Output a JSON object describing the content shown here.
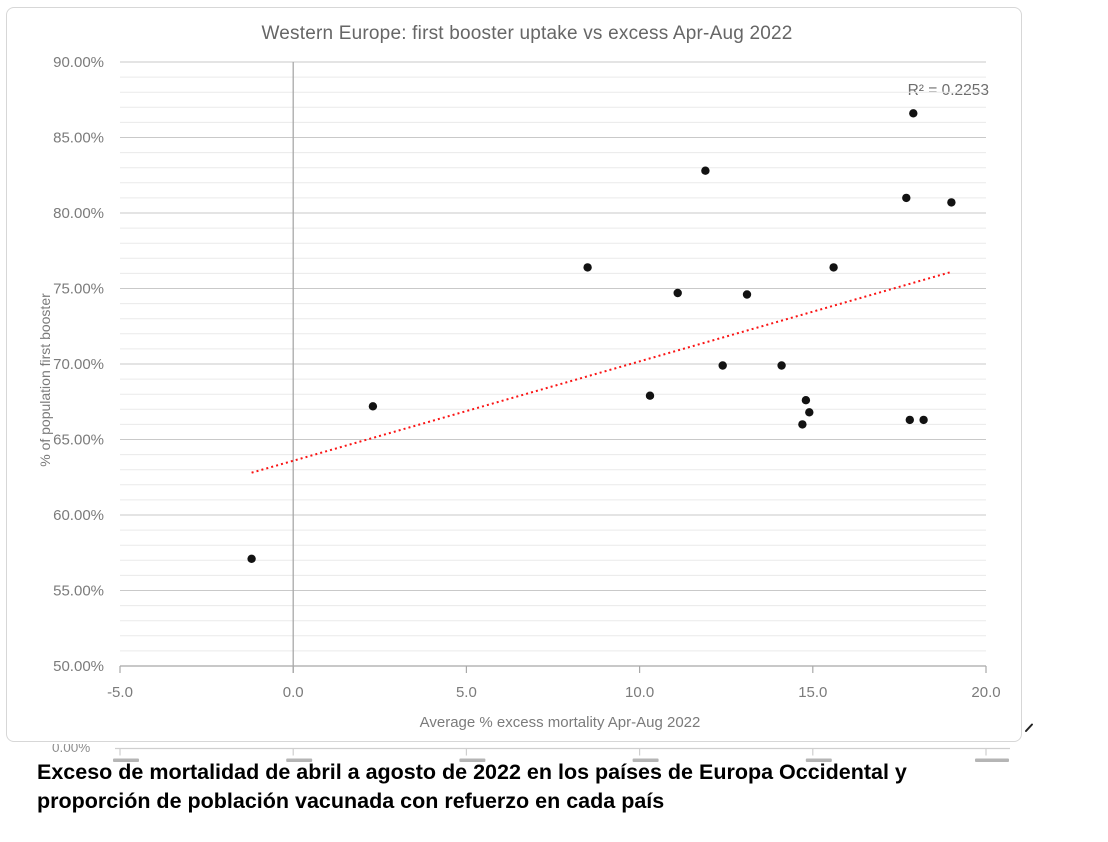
{
  "chart_data": {
    "type": "scatter",
    "title": "Western Europe: first booster uptake vs excess Apr-Aug 2022",
    "xlabel": "Average % excess mortality Apr-Aug 2022",
    "ylabel": "% of population first booster",
    "annotation": "R² = 0.2253",
    "r_squared": 0.2253,
    "xlim": [
      -5.0,
      20.0
    ],
    "ylim": [
      50.0,
      90.0
    ],
    "grid": {
      "horizontal_major": true,
      "horizontal_minor": true,
      "vertical": false
    },
    "legend_position": "none",
    "x_ticks": [
      {
        "value": -5.0,
        "label": "-5.0"
      },
      {
        "value": 0.0,
        "label": "0.0"
      },
      {
        "value": 5.0,
        "label": "5.0"
      },
      {
        "value": 10.0,
        "label": "10.0"
      },
      {
        "value": 15.0,
        "label": "15.0"
      },
      {
        "value": 20.0,
        "label": "20.0"
      }
    ],
    "y_ticks": [
      {
        "value": 50,
        "label": "50.00%"
      },
      {
        "value": 55,
        "label": "55.00%"
      },
      {
        "value": 60,
        "label": "60.00%"
      },
      {
        "value": 65,
        "label": "65.00%"
      },
      {
        "value": 70,
        "label": "70.00%"
      },
      {
        "value": 75,
        "label": "75.00%"
      },
      {
        "value": 80,
        "label": "80.00%"
      },
      {
        "value": 85,
        "label": "85.00%"
      },
      {
        "value": 90,
        "label": "90.00%"
      }
    ],
    "y_minor_step": 1,
    "series": [
      {
        "name": "countries",
        "marker": "circle",
        "color": "#121212",
        "points": [
          {
            "x": -1.2,
            "y": 57.1
          },
          {
            "x": 2.3,
            "y": 67.2
          },
          {
            "x": 8.5,
            "y": 76.4
          },
          {
            "x": 10.3,
            "y": 67.9
          },
          {
            "x": 11.1,
            "y": 74.7
          },
          {
            "x": 11.9,
            "y": 82.8
          },
          {
            "x": 12.4,
            "y": 69.9
          },
          {
            "x": 13.1,
            "y": 74.6
          },
          {
            "x": 14.1,
            "y": 69.9
          },
          {
            "x": 14.7,
            "y": 66.0
          },
          {
            "x": 14.8,
            "y": 67.6
          },
          {
            "x": 14.9,
            "y": 66.8
          },
          {
            "x": 15.6,
            "y": 76.4
          },
          {
            "x": 17.7,
            "y": 81.0
          },
          {
            "x": 17.8,
            "y": 66.3
          },
          {
            "x": 17.9,
            "y": 86.6
          },
          {
            "x": 18.2,
            "y": 66.3
          },
          {
            "x": 19.0,
            "y": 80.7
          }
        ]
      }
    ],
    "trendline": {
      "style": "dotted",
      "color": "#fa1414",
      "start": {
        "x": -1.2,
        "y": 62.8
      },
      "end": {
        "x": 19.0,
        "y": 76.1
      }
    }
  },
  "remnant_chart": {
    "visible_y_label": "0.00%"
  },
  "caption": {
    "lines": [
      "Exceso de mortalidad de abril a agosto de 2022 en los países de Europa Occidental y",
      "proporción de población vacunada con refuerzo en cada país"
    ]
  },
  "colors": {
    "point": "#121212",
    "trendline": "#fa1414",
    "major_grid": "#c9c9c9",
    "minor_grid": "#eaeaea",
    "axis_line": "#a8a8a8",
    "text_gray": "#7b7b7b",
    "chart_border": "#d7d7d7"
  }
}
